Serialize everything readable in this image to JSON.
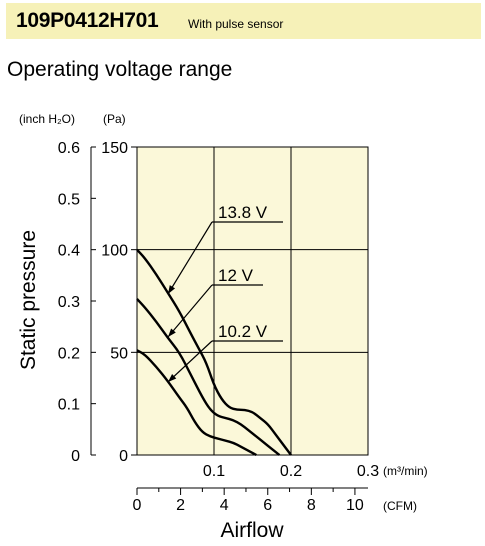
{
  "header": {
    "model": "109P0412H701",
    "note": "With pulse sensor"
  },
  "section_title": "Operating voltage range",
  "colors": {
    "header_bg": "#f6f1b8",
    "plot_bg": "#fbf8d9",
    "line": "#000000"
  },
  "chart_data": {
    "type": "line",
    "title": "",
    "ylabel": "Static pressure",
    "xlabel": "Airflow",
    "y_units": {
      "left": "(inch H₂O)",
      "right": "(Pa)"
    },
    "x_units": {
      "top": "(m³/min)",
      "bottom": "(CFM)"
    },
    "ylim_pa": [
      0,
      150
    ],
    "xlim_m3min": [
      0,
      0.3
    ],
    "y_ticks_inch": [
      "0.6",
      "0.5",
      "0.4",
      "0.3",
      "0.2",
      "0.1",
      "0"
    ],
    "y_ticks_pa": [
      "150",
      "100",
      "50",
      "0"
    ],
    "x_ticks_m3min": [
      "0.1",
      "0.2",
      "0.3"
    ],
    "x_ticks_cfm": [
      "0",
      "2",
      "4",
      "6",
      "8",
      "10"
    ],
    "grid": true,
    "series": [
      {
        "name": "13.8 V",
        "x": [
          0,
          0.01,
          0.025,
          0.04,
          0.055,
          0.07,
          0.08,
          0.09,
          0.1,
          0.11,
          0.12,
          0.13,
          0.14,
          0.15,
          0.16,
          0.17,
          0.18,
          0.19,
          0.2
        ],
        "y": [
          100,
          96,
          88,
          79,
          70,
          59,
          52,
          45,
          34,
          27,
          23,
          22,
          22,
          21,
          18,
          15,
          10,
          5,
          0
        ]
      },
      {
        "name": "12 V",
        "x": [
          0,
          0.01,
          0.025,
          0.04,
          0.055,
          0.07,
          0.085,
          0.095,
          0.105,
          0.115,
          0.125,
          0.135,
          0.145,
          0.155,
          0.165,
          0.175,
          0.185
        ],
        "y": [
          76,
          72,
          65,
          57,
          50,
          39,
          28,
          22,
          19,
          18,
          17,
          15,
          12,
          9,
          6,
          3,
          0
        ]
      },
      {
        "name": "10.2 V",
        "x": [
          0,
          0.01,
          0.025,
          0.04,
          0.055,
          0.065,
          0.075,
          0.085,
          0.095,
          0.105,
          0.115,
          0.125,
          0.135,
          0.145,
          0.155
        ],
        "y": [
          51,
          49,
          43,
          36,
          28,
          23,
          16,
          11,
          9,
          8,
          7,
          6,
          4,
          2,
          0
        ]
      }
    ]
  }
}
